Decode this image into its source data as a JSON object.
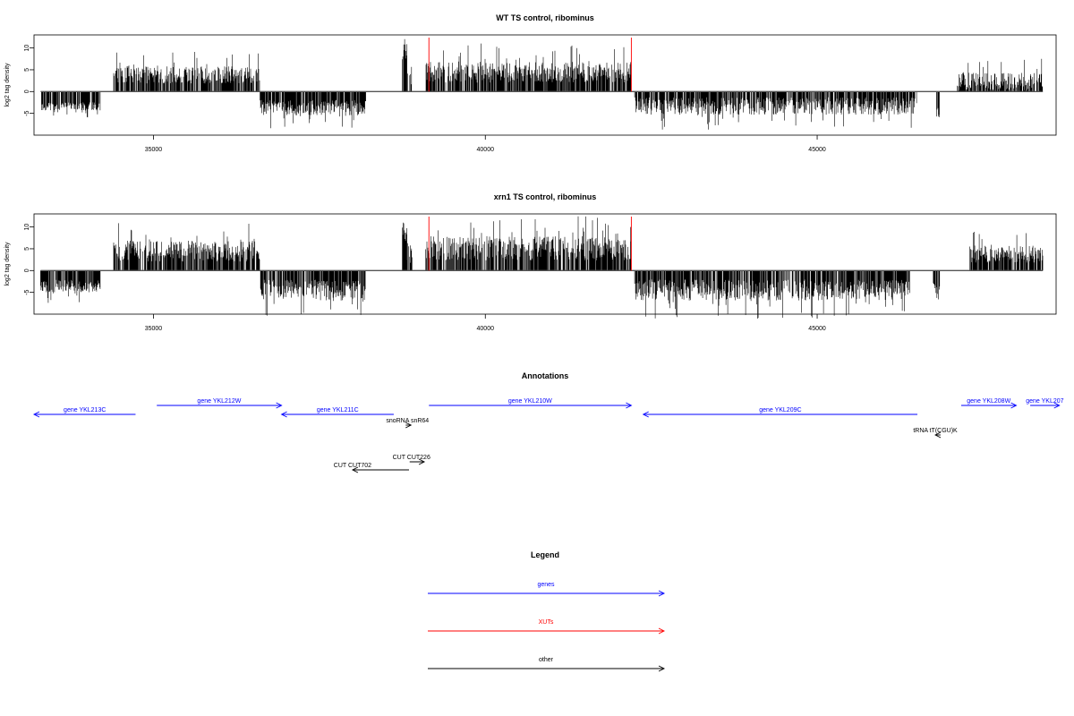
{
  "chart_data": [
    {
      "type": "bar",
      "title": "WT TS control, ribominus",
      "xlabel": "",
      "ylabel": "log2 tag density",
      "xlim": [
        33200,
        48600
      ],
      "ylim": [
        -10,
        13
      ],
      "xticks": [
        35000,
        40000,
        45000
      ],
      "xtick_labels": [
        "35000",
        "40000",
        "45000"
      ],
      "yticks": [
        -5,
        0,
        5,
        10
      ],
      "ytick_labels": [
        "-5",
        "0",
        "5",
        "10"
      ],
      "grid": false,
      "segments": [
        {
          "start": 33300,
          "end": 34200,
          "sign": -1,
          "base": 3.0,
          "amp": 1.2,
          "density": 3
        },
        {
          "start": 34400,
          "end": 36600,
          "sign": 1,
          "base": 3.0,
          "amp": 2.5,
          "density": 3
        },
        {
          "start": 36600,
          "end": 38200,
          "sign": -1,
          "base": 3.0,
          "amp": 2.2,
          "density": 3
        },
        {
          "start": 38750,
          "end": 38820,
          "sign": 1,
          "base": 8.5,
          "amp": 3.5,
          "density": 1
        },
        {
          "start": 38820,
          "end": 38900,
          "sign": 1,
          "base": 3.0,
          "amp": 3.0,
          "density": 1
        },
        {
          "start": 39100,
          "end": 42200,
          "sign": 1,
          "base": 3.5,
          "amp": 3.0,
          "density": 2
        },
        {
          "start": 42250,
          "end": 46500,
          "sign": -1,
          "base": 2.5,
          "amp": 2.5,
          "density": 3
        },
        {
          "start": 46800,
          "end": 46850,
          "sign": -1,
          "base": 4.0,
          "amp": 2.0,
          "density": 1
        },
        {
          "start": 47100,
          "end": 48400,
          "sign": 1,
          "base": 1.5,
          "amp": 2.5,
          "density": 8
        }
      ],
      "highlight_lines": [
        39150,
        42200
      ],
      "series_color": "#000000",
      "highlight_color": "#ff0000"
    },
    {
      "type": "bar",
      "title": "xrn1 TS control, ribominus",
      "xlabel": "",
      "ylabel": "log2 tag density",
      "xlim": [
        33200,
        48600
      ],
      "ylim": [
        -10,
        13
      ],
      "xticks": [
        35000,
        40000,
        45000
      ],
      "xtick_labels": [
        "35000",
        "40000",
        "45000"
      ],
      "yticks": [
        -5,
        0,
        5,
        10
      ],
      "ytick_labels": [
        "-5",
        "0",
        "5",
        "10"
      ],
      "grid": false,
      "segments": [
        {
          "start": 33300,
          "end": 34200,
          "sign": -1,
          "base": 3.0,
          "amp": 1.8,
          "density": 3
        },
        {
          "start": 34400,
          "end": 36600,
          "sign": 1,
          "base": 3.5,
          "amp": 3.0,
          "density": 2
        },
        {
          "start": 36600,
          "end": 38200,
          "sign": -1,
          "base": 3.5,
          "amp": 3.0,
          "density": 2
        },
        {
          "start": 38750,
          "end": 38820,
          "sign": 1,
          "base": 8.0,
          "amp": 3.5,
          "density": 1
        },
        {
          "start": 38820,
          "end": 38900,
          "sign": 1,
          "base": 3.0,
          "amp": 3.0,
          "density": 1
        },
        {
          "start": 39100,
          "end": 42200,
          "sign": 1,
          "base": 4.0,
          "amp": 3.5,
          "density": 2
        },
        {
          "start": 42250,
          "end": 46400,
          "sign": -1,
          "base": 3.5,
          "amp": 3.0,
          "density": 2
        },
        {
          "start": 46750,
          "end": 46850,
          "sign": -1,
          "base": 4.0,
          "amp": 2.5,
          "density": 1
        },
        {
          "start": 47300,
          "end": 48400,
          "sign": 1,
          "base": 3.0,
          "amp": 2.5,
          "density": 3
        }
      ],
      "highlight_lines": [
        39150,
        42200
      ],
      "series_color": "#000000",
      "highlight_color": "#ff0000"
    },
    {
      "type": "annotation-track",
      "title": "Annotations",
      "xlim": [
        33200,
        48600
      ],
      "features": [
        {
          "label": "gene YKL213C",
          "start": 33200,
          "end": 34730,
          "strand": "-",
          "kind": "gene",
          "row": 1
        },
        {
          "label": "gene YKL212W",
          "start": 35050,
          "end": 36930,
          "strand": "+",
          "kind": "gene",
          "row": 0
        },
        {
          "label": "gene YKL211C",
          "start": 36930,
          "end": 38620,
          "strand": "-",
          "kind": "gene",
          "row": 1
        },
        {
          "label": "snoRNA snR64",
          "start": 38800,
          "end": 38880,
          "strand": "+",
          "kind": "other",
          "row": 2
        },
        {
          "label": "gene YKL210W",
          "start": 39150,
          "end": 42200,
          "strand": "+",
          "kind": "gene",
          "row": 0
        },
        {
          "label": "gene YKL209C",
          "start": 42380,
          "end": 46510,
          "strand": "-",
          "kind": "gene",
          "row": 1
        },
        {
          "label": "tRNA tT(CGU)K",
          "start": 46780,
          "end": 46860,
          "strand": "-",
          "kind": "other",
          "row": 3
        },
        {
          "label": "gene YKL208W",
          "start": 47170,
          "end": 48000,
          "strand": "+",
          "kind": "gene",
          "row": 0
        },
        {
          "label": "gene YKL207",
          "start": 48210,
          "end": 48650,
          "strand": "+",
          "kind": "gene",
          "row": 0
        },
        {
          "label": "CUT CUT226",
          "start": 38860,
          "end": 39080,
          "strand": "+",
          "kind": "other",
          "row": 4
        },
        {
          "label": "CUT CUT702",
          "start": 38000,
          "end": 38850,
          "strand": "-",
          "kind": "other",
          "row": 5
        }
      ]
    },
    {
      "type": "legend",
      "title": "Legend",
      "items": [
        {
          "label": "genes",
          "color": "#0000ff"
        },
        {
          "label": "XUTs",
          "color": "#ff0000"
        },
        {
          "label": "other",
          "color": "#000000"
        }
      ]
    }
  ],
  "colors": {
    "gene": "#0000ff",
    "xut": "#ff0000",
    "other": "#000000",
    "axis": "#000000"
  }
}
